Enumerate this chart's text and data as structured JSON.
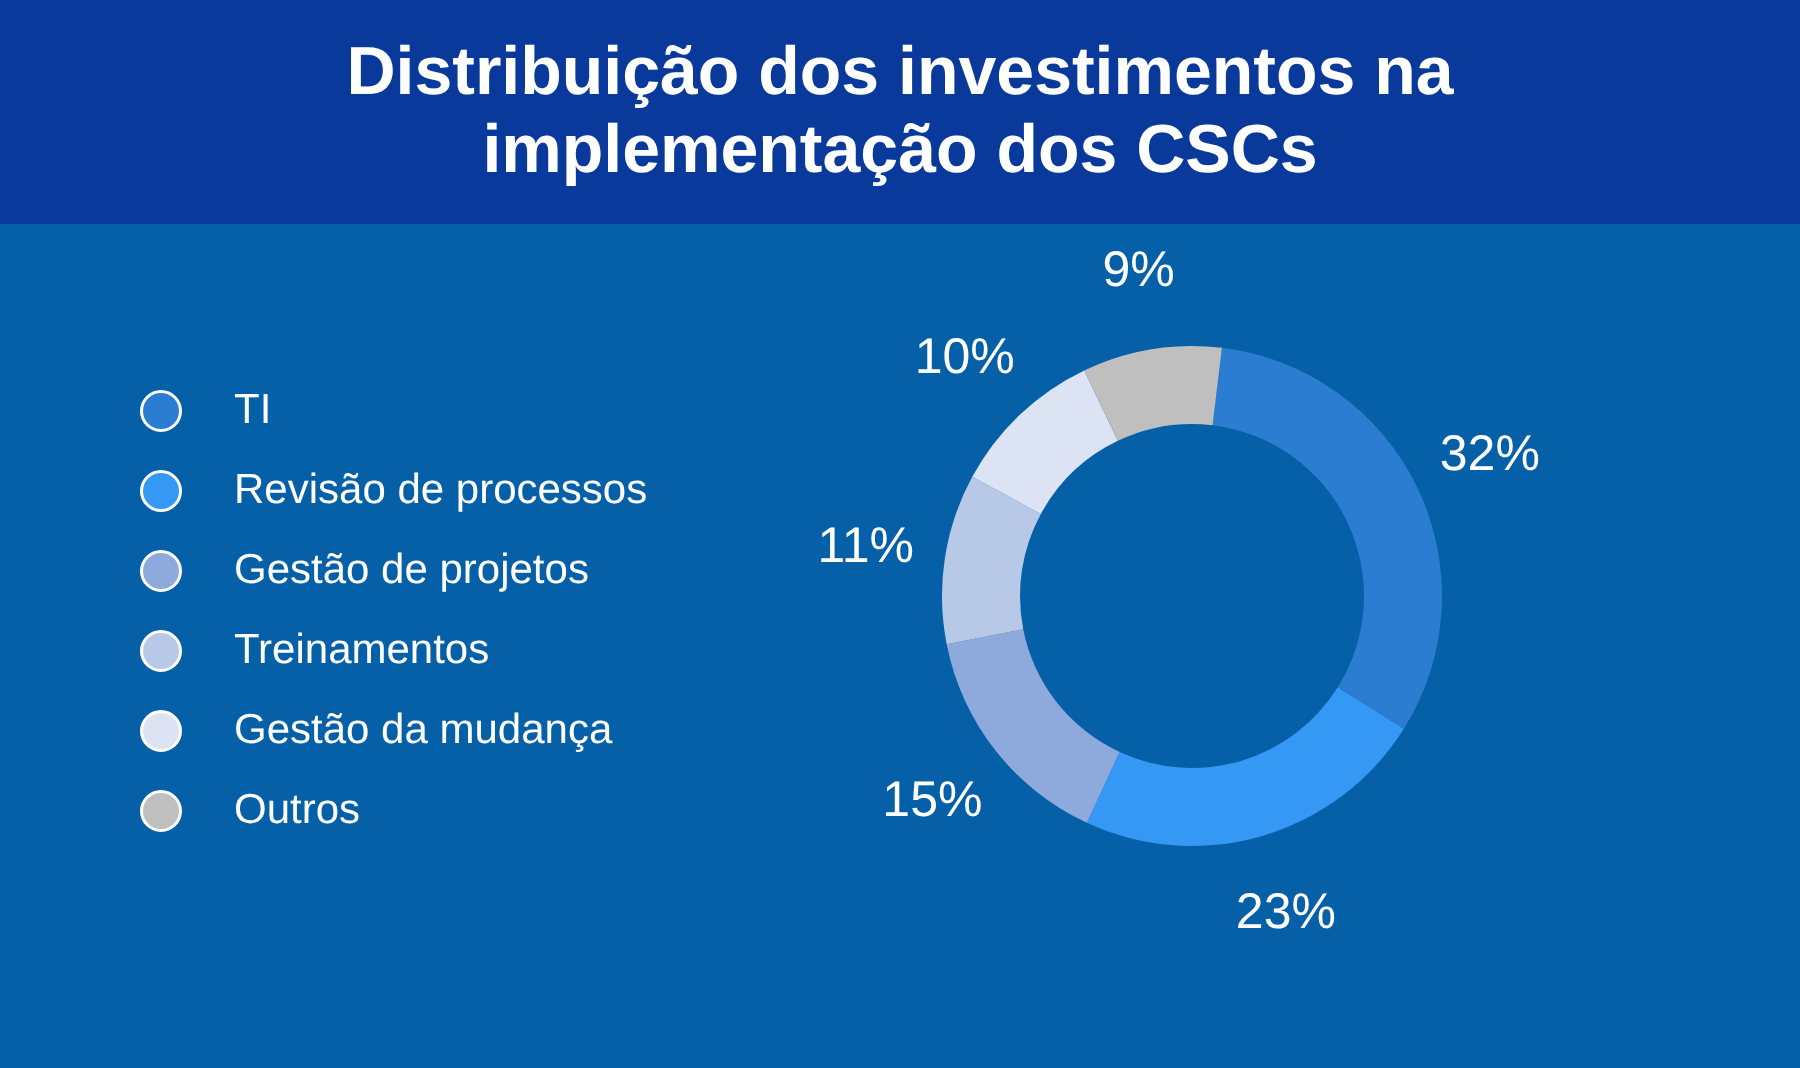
{
  "chart_data": {
    "type": "donut",
    "title": "Distribuição dos investimentos na implementação dos CSCs",
    "categories": [
      "TI",
      "Revisão de processos",
      "Gestão de projetos",
      "Treinamentos",
      "Gestão da mudança",
      "Outros"
    ],
    "values": [
      32,
      23,
      15,
      11,
      10,
      9
    ],
    "colors": [
      "#2a7dd0",
      "#3598f4",
      "#8eaadc",
      "#b8c9e8",
      "#dce4f4",
      "#bfbfbf"
    ],
    "value_labels": [
      "32%",
      "23%",
      "15%",
      "11%",
      "10%",
      "9%"
    ],
    "legend": "left"
  }
}
